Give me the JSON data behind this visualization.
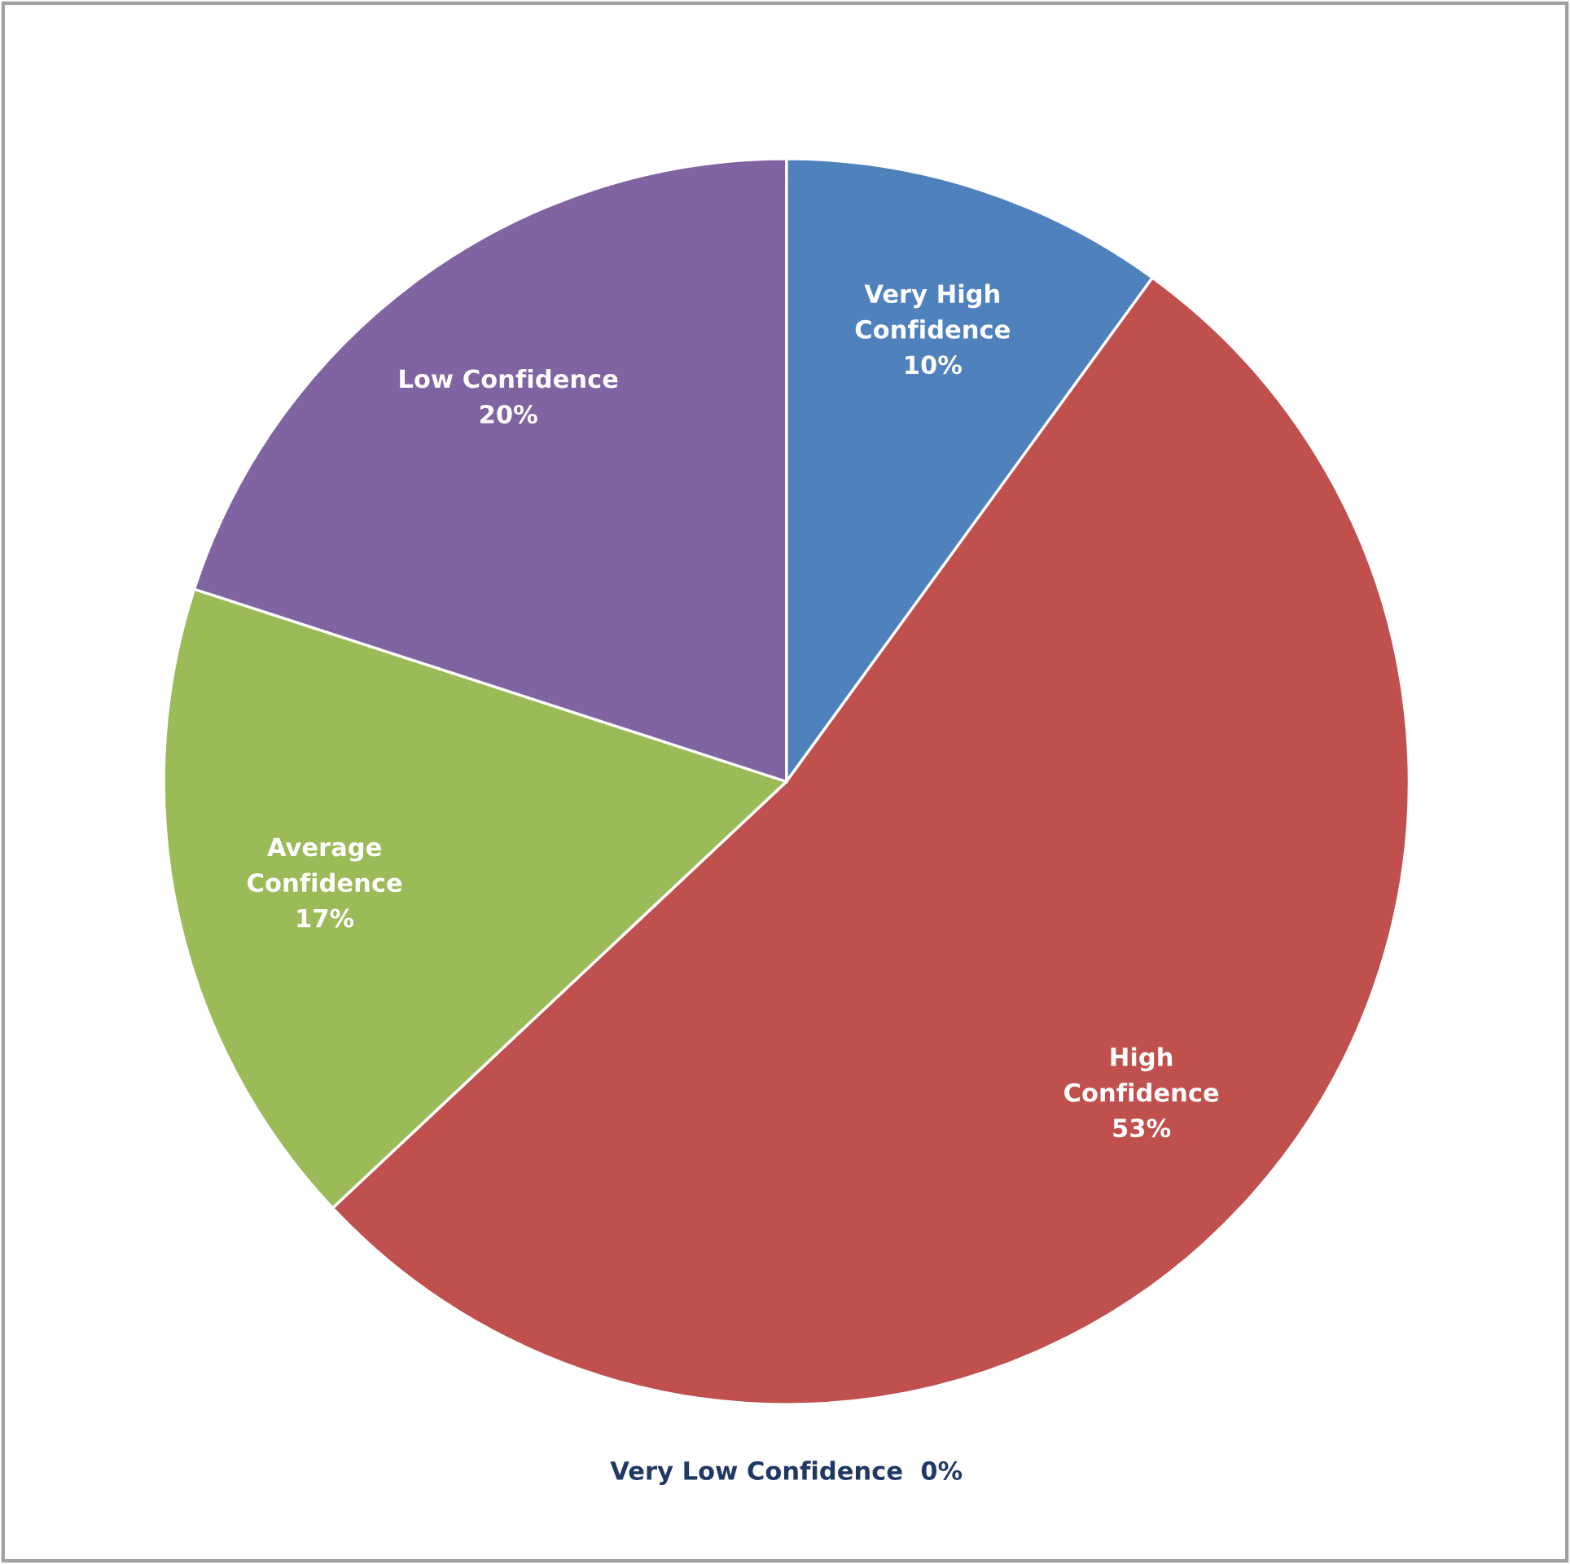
{
  "chart_data": {
    "type": "pie",
    "categories": [
      "Very High\nConfidence",
      "High\nConfidence",
      "Very Low Confidence",
      "Average\nConfidence",
      "Low Confidence"
    ],
    "values": [
      10,
      53,
      0,
      17,
      20
    ],
    "value_labels": [
      "10%",
      "53%",
      "0%",
      "17%",
      "20%"
    ],
    "colors": [
      "#4f81bd",
      "#c0504d",
      "#4bacc6",
      "#9bbb59",
      "#8064a2"
    ],
    "legend": false
  }
}
